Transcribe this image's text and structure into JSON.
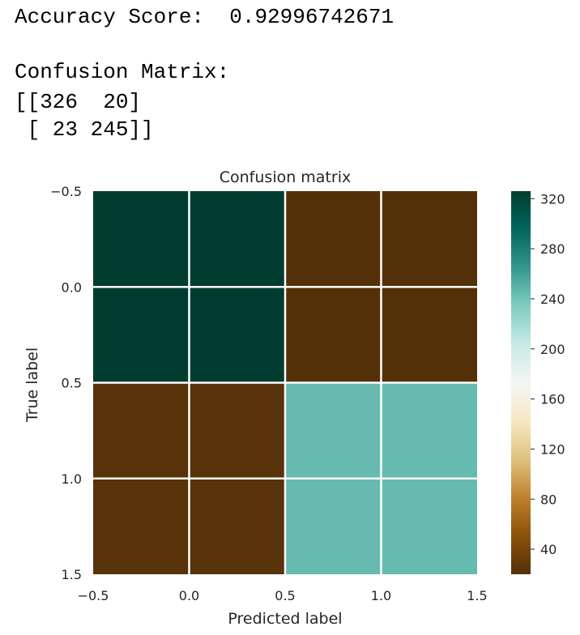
{
  "output": {
    "accuracy_line": "Accuracy Score:  0.92996742671",
    "matrix_heading": "Confusion Matrix:",
    "matrix_line1": "[[326  20]",
    "matrix_line2": " [ 23 245]]"
  },
  "chart_data": {
    "type": "heatmap",
    "title": "Confusion matrix",
    "xlabel": "Predicted label",
    "ylabel": "True label",
    "xlim": [
      -0.5,
      1.5
    ],
    "ylim": [
      1.5,
      -0.5
    ],
    "x_ticks": [
      "-0.5",
      "0.0",
      "0.5",
      "1.0",
      "1.5"
    ],
    "y_ticks": [
      "-0.5",
      "0.0",
      "0.5",
      "1.0",
      "1.5"
    ],
    "matrix": [
      [
        326,
        20
      ],
      [
        23,
        245
      ]
    ],
    "colormap": "BrBG",
    "colorbar": {
      "min": 20,
      "max": 326,
      "ticks": [
        "40",
        "80",
        "120",
        "160",
        "200",
        "240",
        "280",
        "320"
      ]
    },
    "colors": {
      "high": "#053c30",
      "low": "#543009",
      "mid_high": "#67b9ae",
      "grid": "#ffffff"
    }
  }
}
